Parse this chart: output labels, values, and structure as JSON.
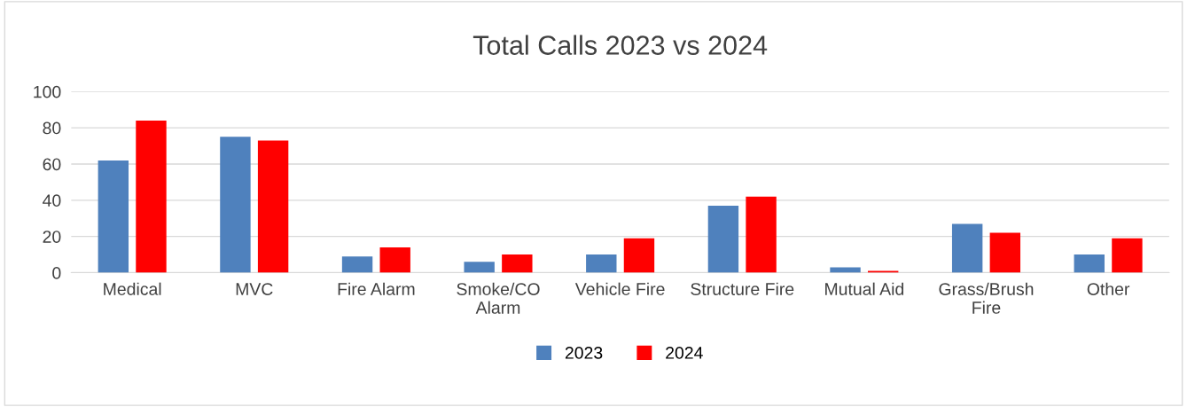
{
  "chart_data": {
    "type": "bar",
    "title": "Total Calls 2023 vs 2024",
    "categories": [
      "Medical",
      "MVC",
      "Fire Alarm",
      "Smoke/CO\nAlarm",
      "Vehicle Fire",
      "Structure Fire",
      "Mutual Aid",
      "Grass/Brush\nFire",
      "Other"
    ],
    "series": [
      {
        "name": "2023",
        "color": "#4f81bd",
        "values": [
          62,
          75,
          9,
          6,
          10,
          37,
          3,
          27,
          10
        ]
      },
      {
        "name": "2024",
        "color": "#ff0000",
        "values": [
          84,
          73,
          14,
          10,
          19,
          42,
          1,
          22,
          19
        ]
      }
    ],
    "ylim": [
      0,
      100
    ],
    "yticks": [
      0,
      20,
      40,
      60,
      80,
      100
    ],
    "grid": "y",
    "legend": "bottom"
  }
}
